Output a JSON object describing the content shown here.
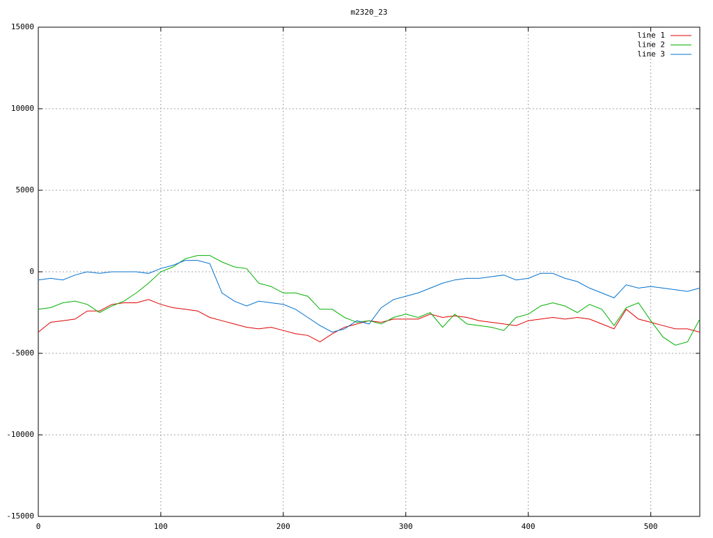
{
  "chart_data": {
    "type": "line",
    "title": "m2320_23",
    "x": [
      0,
      10,
      20,
      30,
      40,
      50,
      60,
      70,
      80,
      90,
      100,
      110,
      120,
      130,
      140,
      150,
      160,
      170,
      180,
      190,
      200,
      210,
      220,
      230,
      240,
      250,
      260,
      270,
      280,
      290,
      300,
      310,
      320,
      330,
      340,
      350,
      360,
      370,
      380,
      390,
      400,
      410,
      420,
      430,
      440,
      450,
      460,
      470,
      480,
      490,
      500,
      510,
      520,
      530,
      540
    ],
    "series": [
      {
        "name": "line 1",
        "color": "#e00000",
        "values": [
          -3700,
          -3100,
          -3000,
          -2900,
          -2400,
          -2400,
          -2000,
          -1900,
          -1900,
          -1700,
          -2000,
          -2200,
          -2300,
          -2400,
          -2800,
          -3000,
          -3200,
          -3400,
          -3500,
          -3400,
          -3600,
          -3800,
          -3900,
          -4300,
          -3800,
          -3400,
          -3200,
          -3000,
          -3100,
          -2900,
          -2900,
          -2900,
          -2600,
          -2800,
          -2700,
          -2800,
          -3000,
          -3100,
          -3200,
          -3300,
          -3000,
          -2900,
          -2800,
          -2900,
          -2800,
          -2900,
          -3200,
          -3500,
          -2300,
          -2900,
          -3100,
          -3300,
          -3500,
          -3500,
          -3700
        ]
      },
      {
        "name": "line 2",
        "color": "#00b000",
        "values": [
          -2300,
          -2200,
          -1900,
          -1800,
          -2000,
          -2500,
          -2100,
          -1800,
          -1300,
          -700,
          0,
          300,
          800,
          1000,
          1000,
          600,
          300,
          200,
          -700,
          -900,
          -1300,
          -1300,
          -1500,
          -2300,
          -2300,
          -2800,
          -3100,
          -3000,
          -3200,
          -2800,
          -2600,
          -2800,
          -2500,
          -3400,
          -2600,
          -3200,
          -3300,
          -3400,
          -3600,
          -2800,
          -2600,
          -2100,
          -1900,
          -2100,
          -2500,
          -2000,
          -2300,
          -3300,
          -2200,
          -1900,
          -3000,
          -4000,
          -4500,
          -4300,
          -2900
        ]
      },
      {
        "name": "line 3",
        "color": "#0070d0",
        "values": [
          -500,
          -400,
          -500,
          -200,
          0,
          -100,
          0,
          0,
          0,
          -100,
          200,
          400,
          700,
          700,
          500,
          -1300,
          -1800,
          -2100,
          -1800,
          -1900,
          -2000,
          -2300,
          -2800,
          -3300,
          -3700,
          -3500,
          -3000,
          -3200,
          -2200,
          -1700,
          -1500,
          -1300,
          -1000,
          -700,
          -500,
          -400,
          -400,
          -300,
          -200,
          -500,
          -400,
          -100,
          -100,
          -400,
          -600,
          -1000,
          -1300,
          -1600,
          -800,
          -1000,
          -900,
          -1000,
          -1100,
          -1200,
          -1000
        ]
      }
    ],
    "xlim": [
      0,
      540
    ],
    "xticks": [
      0,
      100,
      200,
      300,
      400,
      500
    ],
    "ylim": [
      -15000,
      15000
    ],
    "yticks": [
      -15000,
      -10000,
      -5000,
      0,
      5000,
      10000,
      15000
    ],
    "grid": true,
    "legend": "top-right"
  }
}
